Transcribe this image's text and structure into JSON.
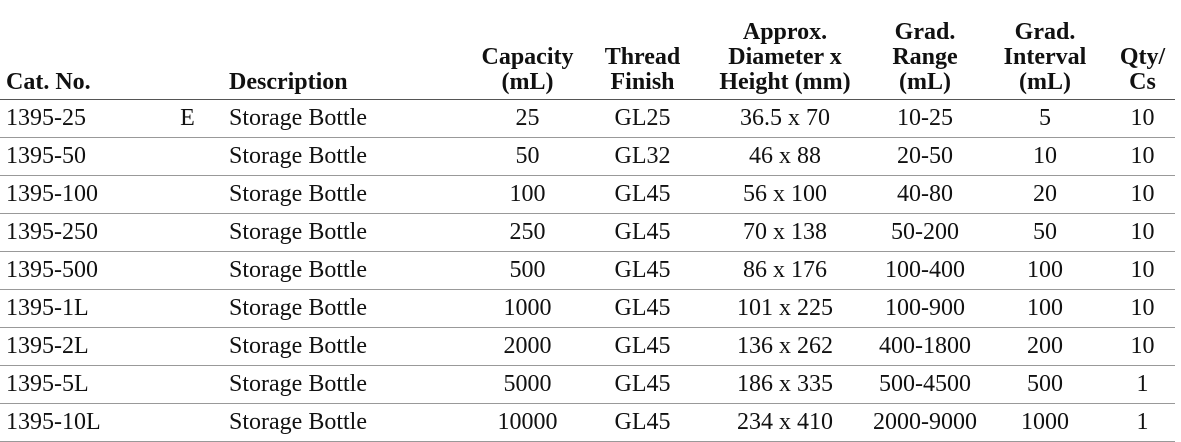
{
  "table": {
    "headers": [
      [
        "Cat. No."
      ],
      [
        "Description"
      ],
      [
        "Capacity",
        "(mL)"
      ],
      [
        "Thread",
        "Finish"
      ],
      [
        "Approx.",
        "Diameter x",
        "Height (mm)"
      ],
      [
        "Grad.",
        "Range",
        "(mL)"
      ],
      [
        "Grad.",
        "Interval",
        "(mL)"
      ],
      [
        "Qty/",
        "Cs"
      ]
    ],
    "rows": [
      {
        "cat": "1395-25",
        "flag": "E",
        "description": "Storage Bottle",
        "capacity": 25,
        "thread": "GL25",
        "size": "36.5 x 70",
        "range": "10-25",
        "interval": 5,
        "qty": 10
      },
      {
        "cat": "1395-50",
        "description": "Storage Bottle",
        "capacity": 50,
        "thread": "GL32",
        "size": "46 x 88",
        "range": "20-50",
        "interval": 10,
        "qty": 10
      },
      {
        "cat": "1395-100",
        "description": "Storage Bottle",
        "capacity": 100,
        "thread": "GL45",
        "size": "56 x 100",
        "range": "40-80",
        "interval": 20,
        "qty": 10
      },
      {
        "cat": "1395-250",
        "description": "Storage Bottle",
        "capacity": 250,
        "thread": "GL45",
        "size": "70 x 138",
        "range": "50-200",
        "interval": 50,
        "qty": 10
      },
      {
        "cat": "1395-500",
        "description": "Storage Bottle",
        "capacity": 500,
        "thread": "GL45",
        "size": "86 x 176",
        "range": "100-400",
        "interval": 100,
        "qty": 10
      },
      {
        "cat": "1395-1L",
        "description": "Storage Bottle",
        "capacity": 1000,
        "thread": "GL45",
        "size": "101 x 225",
        "range": "100-900",
        "interval": 100,
        "qty": 10
      },
      {
        "cat": "1395-2L",
        "description": "Storage Bottle",
        "capacity": 2000,
        "thread": "GL45",
        "size": "136 x 262",
        "range": "400-1800",
        "interval": 200,
        "qty": 10
      },
      {
        "cat": "1395-5L",
        "description": "Storage Bottle",
        "capacity": 5000,
        "thread": "GL45",
        "size": "186 x 335",
        "range": "500-4500",
        "interval": 500,
        "qty": 1
      },
      {
        "cat": "1395-10L",
        "description": "Storage Bottle",
        "capacity": 10000,
        "thread": "GL45",
        "size": "234 x 410",
        "range": "2000-9000",
        "interval": 1000,
        "qty": 1
      }
    ]
  }
}
